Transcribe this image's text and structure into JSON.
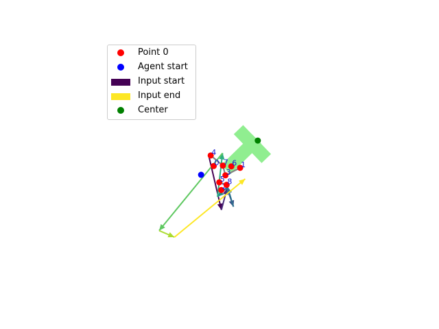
{
  "chart_data": {
    "type": "scatter",
    "title": "",
    "xlabel": "",
    "ylabel": "",
    "axes_visible": false,
    "grid": false,
    "xlim": [
      -12,
      12
    ],
    "ylim": [
      -12,
      12
    ],
    "legend": {
      "placement": "upper-left",
      "entries": [
        {
          "label": "Point 0",
          "kind": "marker",
          "color": "#ff0000"
        },
        {
          "label": "Agent start",
          "kind": "marker",
          "color": "#0000ff"
        },
        {
          "label": "Input start",
          "kind": "patch",
          "color": "#440154"
        },
        {
          "label": "Input end",
          "kind": "patch",
          "color": "#fde725"
        },
        {
          "label": "Center",
          "kind": "marker",
          "color": "#008000"
        }
      ]
    },
    "points": [
      {
        "label": "0",
        "x": -0.55,
        "y": 0.05
      },
      {
        "label": "1",
        "x": 1.95,
        "y": -0.12
      },
      {
        "label": "2",
        "x": 0.17,
        "y": -2.22
      },
      {
        "label": "3",
        "x": 0.56,
        "y": -0.83
      },
      {
        "label": "4",
        "x": -0.83,
        "y": 1.05
      },
      {
        "label": "5",
        "x": -0.02,
        "y": -1.49
      },
      {
        "label": "6",
        "x": 1.12,
        "y": 0.02
      },
      {
        "label": "7",
        "x": 0.32,
        "y": 0.09
      },
      {
        "label": "8",
        "x": 0.67,
        "y": -1.73
      }
    ],
    "point_color": "#ff0000",
    "agent_start": {
      "x": -1.74,
      "y": -0.78,
      "color": "#0000ff"
    },
    "center": {
      "x": 3.62,
      "y": 2.46,
      "color": "#008000"
    },
    "polygon_edges": [
      [
        [
          -0.83,
          1.05
        ],
        [
          0.32,
          0.09
        ]
      ],
      [
        [
          0.32,
          0.09
        ],
        [
          0.56,
          -0.83
        ]
      ],
      [
        [
          0.56,
          -0.83
        ],
        [
          1.95,
          -0.12
        ]
      ],
      [
        [
          -0.02,
          -1.49
        ],
        [
          0.67,
          -1.73
        ]
      ]
    ],
    "polygon_color": "#808080",
    "target_shape": {
      "color": "#90ee90",
      "segments": [
        [
          [
            2.22,
            3.05
          ],
          [
            4.0,
            1.2
          ]
        ],
        [
          [
            3.1,
            2.15
          ],
          [
            1.05,
            0.15
          ]
        ]
      ]
    },
    "input_path": {
      "colormap": "viridis",
      "points": [
        [
          -1.0,
          0.96
        ],
        [
          0.18,
          -4.1
        ],
        [
          0.72,
          -2.06
        ],
        [
          1.32,
          -3.8
        ],
        [
          0.76,
          -1.93
        ],
        [
          -0.19,
          -2.86
        ],
        [
          0.29,
          1.27
        ],
        [
          -5.71,
          -6.06
        ],
        [
          -4.26,
          -6.68
        ],
        [
          2.43,
          -1.17
        ]
      ]
    }
  }
}
